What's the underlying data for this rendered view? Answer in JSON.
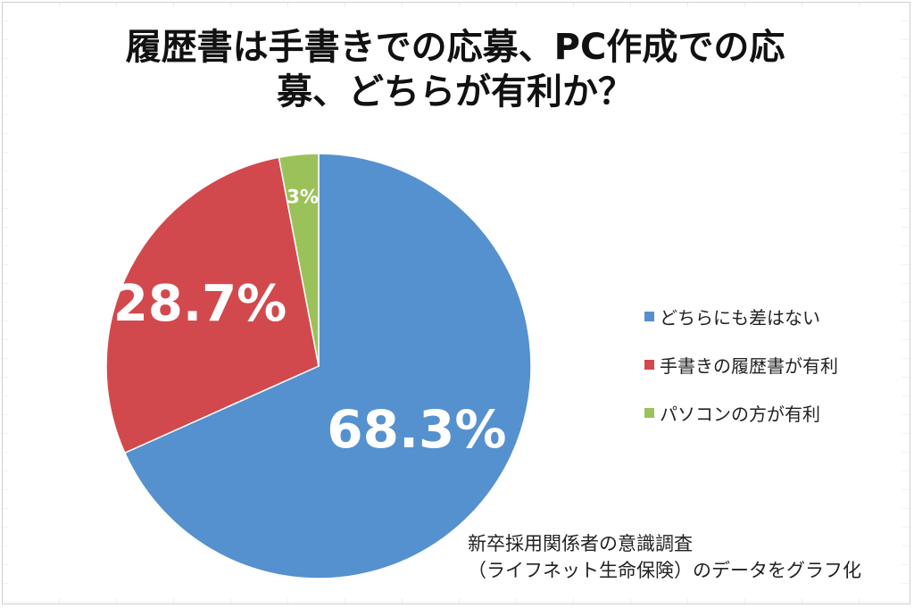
{
  "chart_data": {
    "type": "pie",
    "title_lines": [
      "履歴書は手書きでの応募、PC作成での応",
      "募、どちらが有利か？"
    ],
    "slices": [
      {
        "label": "どちらにも差はない",
        "value": 68.3,
        "display": "68.3%",
        "color": "#5591cf"
      },
      {
        "label": "手書きの履歴書が有利",
        "value": 28.7,
        "display": "28.7%",
        "color": "#d2494d"
      },
      {
        "label": "パソコンの方が有利",
        "value": 3.0,
        "display": "3%",
        "color": "#9bc25a"
      }
    ],
    "legend_position": "right",
    "source_lines": [
      "新卒採用関係者の意識調査",
      "（ライフネット生命保険）のデータをグラフ化"
    ]
  }
}
